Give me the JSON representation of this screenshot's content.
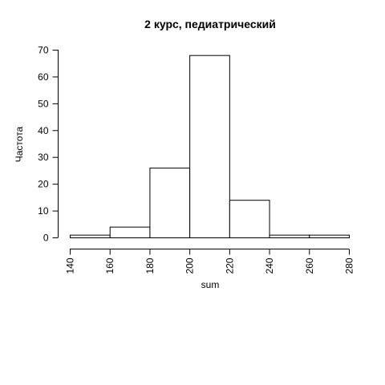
{
  "chart_data": {
    "type": "bar",
    "title": "2 курс, педиатрический",
    "xlabel": "sum",
    "ylabel": "Частота",
    "bins": [
      {
        "from": 140,
        "to": 160,
        "value": 1
      },
      {
        "from": 160,
        "to": 180,
        "value": 4
      },
      {
        "from": 180,
        "to": 200,
        "value": 26
      },
      {
        "from": 200,
        "to": 220,
        "value": 68
      },
      {
        "from": 220,
        "to": 240,
        "value": 14
      },
      {
        "from": 240,
        "to": 260,
        "value": 1
      },
      {
        "from": 260,
        "to": 280,
        "value": 1
      }
    ],
    "xlim": [
      140,
      280
    ],
    "ylim": [
      0,
      70
    ],
    "x_ticks": [
      "140",
      "160",
      "180",
      "200",
      "220",
      "240",
      "260",
      "280"
    ],
    "y_ticks": [
      "0",
      "10",
      "20",
      "30",
      "40",
      "50",
      "60",
      "70"
    ],
    "grid": false,
    "bar_fill": "#ffffff",
    "bar_stroke": "#000000"
  }
}
